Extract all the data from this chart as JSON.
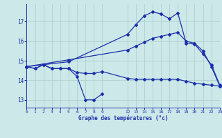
{
  "title": "Graphe des températures (°c)",
  "bg_color": "#cce8e8",
  "grid_color": "#aacccc",
  "line_color": "#1a2eaa",
  "series1_x": [
    0,
    1,
    2,
    3,
    4,
    5,
    6,
    7,
    8,
    9
  ],
  "series1_y": [
    14.7,
    14.6,
    14.8,
    14.6,
    14.6,
    14.6,
    14.2,
    13.0,
    13.0,
    13.3
  ],
  "series2_x": [
    0,
    1,
    2,
    3,
    4,
    5,
    6,
    7,
    8,
    9,
    12,
    13,
    14,
    15,
    16,
    17,
    18,
    19,
    20,
    21,
    22,
    23
  ],
  "series2_y": [
    14.7,
    14.6,
    14.8,
    14.6,
    14.6,
    14.6,
    14.4,
    14.35,
    14.35,
    14.45,
    14.1,
    14.05,
    14.05,
    14.05,
    14.05,
    14.05,
    14.05,
    13.95,
    13.85,
    13.8,
    13.75,
    13.7
  ],
  "series3_x": [
    0,
    5,
    12,
    13,
    14,
    15,
    16,
    17,
    18,
    19,
    20,
    21,
    22,
    23
  ],
  "series3_y": [
    14.7,
    14.95,
    16.35,
    16.85,
    17.3,
    17.5,
    17.4,
    17.15,
    17.45,
    15.9,
    15.85,
    15.35,
    14.8,
    13.75
  ],
  "series4_x": [
    0,
    5,
    12,
    13,
    14,
    15,
    16,
    17,
    18,
    19,
    20,
    21,
    22,
    23
  ],
  "series4_y": [
    14.7,
    15.05,
    15.55,
    15.75,
    15.95,
    16.15,
    16.25,
    16.35,
    16.45,
    16.0,
    15.9,
    15.5,
    14.7,
    13.7
  ],
  "xlim": [
    0,
    23
  ],
  "ylim": [
    12.6,
    17.9
  ],
  "yticks": [
    13,
    14,
    15,
    16,
    17
  ],
  "xtick_positions": [
    0,
    1,
    2,
    3,
    4,
    5,
    6,
    7,
    8,
    9,
    12,
    13,
    14,
    15,
    16,
    17,
    18,
    19,
    20,
    21,
    22,
    23
  ],
  "xtick_labels": [
    "0",
    "1",
    "2",
    "3",
    "4",
    "5",
    "6",
    "7",
    "8",
    "9",
    "12",
    "13",
    "14",
    "15",
    "16",
    "17",
    "18",
    "19",
    "20",
    "21",
    "22",
    "23"
  ]
}
